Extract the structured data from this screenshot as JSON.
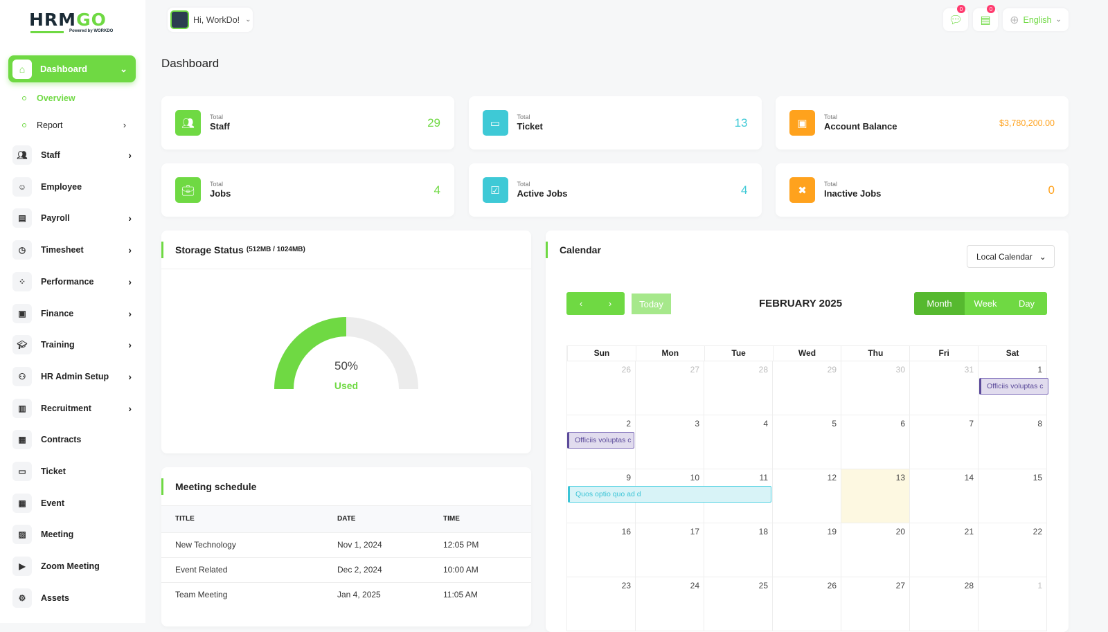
{
  "brand": {
    "logo_text": "HRMGO",
    "powered": "Powered by WORKDO"
  },
  "header": {
    "greeting": "Hi, WorkDo!",
    "messages_badge": "0",
    "notifications_badge": "0",
    "language": "English"
  },
  "sidebar": {
    "active": "Dashboard",
    "sub": [
      {
        "label": "Overview"
      },
      {
        "label": "Report"
      }
    ],
    "items": [
      {
        "label": "Staff",
        "icon": "users-icon",
        "chev": true
      },
      {
        "label": "Employee",
        "icon": "user-icon",
        "chev": false
      },
      {
        "label": "Payroll",
        "icon": "receipt-icon",
        "chev": true
      },
      {
        "label": "Timesheet",
        "icon": "clock-icon",
        "chev": true
      },
      {
        "label": "Performance",
        "icon": "performance-icon",
        "chev": true
      },
      {
        "label": "Finance",
        "icon": "wallet-icon",
        "chev": true
      },
      {
        "label": "Training",
        "icon": "graduation-cap-icon",
        "chev": true
      },
      {
        "label": "HR Admin Setup",
        "icon": "user-plus-icon",
        "chev": true
      },
      {
        "label": "Recruitment",
        "icon": "clipboard-icon",
        "chev": true
      },
      {
        "label": "Contracts",
        "icon": "contract-icon",
        "chev": false
      },
      {
        "label": "Ticket",
        "icon": "ticket-icon",
        "chev": false
      },
      {
        "label": "Event",
        "icon": "calendar-icon",
        "chev": false
      },
      {
        "label": "Meeting",
        "icon": "calendar-clock-icon",
        "chev": false
      },
      {
        "label": "Zoom Meeting",
        "icon": "video-icon",
        "chev": false
      },
      {
        "label": "Assets",
        "icon": "gear-icon",
        "chev": false
      }
    ]
  },
  "page_title": "Dashboard",
  "stats": [
    {
      "small": "Total",
      "label": "Staff",
      "value": "29",
      "color": "#6fd943"
    },
    {
      "small": "Total",
      "label": "Ticket",
      "value": "13",
      "color": "#3ec9d6"
    },
    {
      "small": "Total",
      "label": "Account Balance",
      "value": "$3,780,200.00",
      "color": "#ffa21d"
    },
    {
      "small": "Total",
      "label": "Jobs",
      "value": "4",
      "color": "#6fd943"
    },
    {
      "small": "Total",
      "label": "Active Jobs",
      "value": "4",
      "color": "#3ec9d6"
    },
    {
      "small": "Total",
      "label": "Inactive Jobs",
      "value": "0",
      "color": "#ffa21d"
    }
  ],
  "storage": {
    "title": "Storage Status",
    "detail": "(512MB / 1024MB)",
    "percent_label": "50%",
    "used_label": "Used",
    "used_fraction": 0.5
  },
  "meetings": {
    "title": "Meeting schedule",
    "columns": [
      "TITLE",
      "DATE",
      "TIME"
    ],
    "rows": [
      [
        "New Technology",
        "Nov 1, 2024",
        "12:05 PM"
      ],
      [
        "Event Related",
        "Dec 2, 2024",
        "10:00 AM"
      ],
      [
        "Team Meeting",
        "Jan 4, 2025",
        "11:05 AM"
      ]
    ]
  },
  "calendar": {
    "title": "Calendar",
    "source": "Local Calendar",
    "today": "Today",
    "month": "FEBRUARY 2025",
    "views": [
      "Month",
      "Week",
      "Day"
    ],
    "days": [
      "Sun",
      "Mon",
      "Tue",
      "Wed",
      "Thu",
      "Fri",
      "Sat"
    ],
    "weeks": [
      [
        "26",
        "27",
        "28",
        "29",
        "30",
        "31",
        "1"
      ],
      [
        "2",
        "3",
        "4",
        "5",
        "6",
        "7",
        "8"
      ],
      [
        "9",
        "10",
        "11",
        "12",
        "13",
        "14",
        "15"
      ],
      [
        "16",
        "17",
        "18",
        "19",
        "20",
        "21",
        "22"
      ],
      [
        "23",
        "24",
        "25",
        "26",
        "27",
        "28",
        "1"
      ]
    ],
    "events": [
      "Officiis voluptas c",
      "Officiis voluptas c",
      "Quos optio quo ad d"
    ]
  }
}
